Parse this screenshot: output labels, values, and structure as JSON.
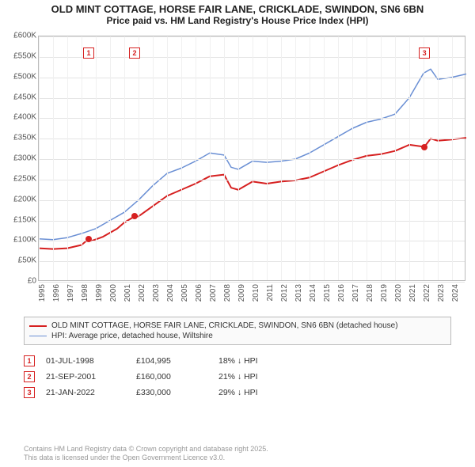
{
  "title_line1": "OLD MINT COTTAGE, HORSE FAIR LANE, CRICKLADE, SWINDON, SN6 6BN",
  "title_line2": "Price paid vs. HM Land Registry's House Price Index (HPI)",
  "chart": {
    "type": "line",
    "background_color": "#ffffff",
    "grid_color": "#e4e4e4",
    "axis_color": "#bbbbbb",
    "label_fontsize": 10,
    "x": {
      "min": 1995,
      "max": 2025,
      "ticks": [
        1995,
        1996,
        1997,
        1998,
        1999,
        2000,
        2001,
        2002,
        2003,
        2004,
        2005,
        2006,
        2007,
        2008,
        2009,
        2010,
        2011,
        2012,
        2013,
        2014,
        2015,
        2016,
        2017,
        2018,
        2019,
        2020,
        2021,
        2022,
        2023,
        2024
      ]
    },
    "y": {
      "min": 0,
      "max": 600000,
      "ticks": [
        0,
        50000,
        100000,
        150000,
        200000,
        250000,
        300000,
        350000,
        400000,
        450000,
        500000,
        550000,
        600000
      ],
      "labels": [
        "£0",
        "£50K",
        "£100K",
        "£150K",
        "£200K",
        "£250K",
        "£300K",
        "£350K",
        "£400K",
        "£450K",
        "£500K",
        "£550K",
        "£600K"
      ]
    },
    "series": [
      {
        "id": "price_paid",
        "label": "OLD MINT COTTAGE, HORSE FAIR LANE, CRICKLADE, SWINDON, SN6 6BN (detached house)",
        "color": "#d62020",
        "line_width": 2,
        "points": [
          [
            1995.0,
            82000
          ],
          [
            1996.0,
            80000
          ],
          [
            1997.0,
            82000
          ],
          [
            1998.0,
            90000
          ],
          [
            1998.5,
            104995
          ],
          [
            1998.7,
            100000
          ],
          [
            1999.5,
            110000
          ],
          [
            2000.5,
            130000
          ],
          [
            2001.0,
            145000
          ],
          [
            2001.72,
            160000
          ],
          [
            2002.0,
            160000
          ],
          [
            2003.0,
            185000
          ],
          [
            2004.0,
            210000
          ],
          [
            2005.0,
            225000
          ],
          [
            2006.0,
            240000
          ],
          [
            2007.0,
            258000
          ],
          [
            2008.0,
            262000
          ],
          [
            2008.5,
            230000
          ],
          [
            2009.0,
            225000
          ],
          [
            2010.0,
            245000
          ],
          [
            2011.0,
            240000
          ],
          [
            2012.0,
            245000
          ],
          [
            2013.0,
            248000
          ],
          [
            2014.0,
            255000
          ],
          [
            2015.0,
            270000
          ],
          [
            2016.0,
            285000
          ],
          [
            2017.0,
            298000
          ],
          [
            2018.0,
            308000
          ],
          [
            2019.0,
            312000
          ],
          [
            2020.0,
            320000
          ],
          [
            2021.0,
            335000
          ],
          [
            2022.06,
            330000
          ],
          [
            2022.5,
            350000
          ],
          [
            2023.0,
            345000
          ],
          [
            2024.0,
            348000
          ],
          [
            2025.0,
            352000
          ]
        ]
      },
      {
        "id": "hpi",
        "label": "HPI: Average price, detached house, Wiltshire",
        "color": "#6a8fd4",
        "line_width": 1.5,
        "points": [
          [
            1995.0,
            105000
          ],
          [
            1996.0,
            103000
          ],
          [
            1997.0,
            108000
          ],
          [
            1998.0,
            118000
          ],
          [
            1999.0,
            130000
          ],
          [
            2000.0,
            150000
          ],
          [
            2001.0,
            170000
          ],
          [
            2002.0,
            200000
          ],
          [
            2003.0,
            235000
          ],
          [
            2004.0,
            265000
          ],
          [
            2005.0,
            278000
          ],
          [
            2006.0,
            295000
          ],
          [
            2007.0,
            315000
          ],
          [
            2008.0,
            310000
          ],
          [
            2008.5,
            280000
          ],
          [
            2009.0,
            275000
          ],
          [
            2010.0,
            295000
          ],
          [
            2011.0,
            292000
          ],
          [
            2012.0,
            295000
          ],
          [
            2013.0,
            300000
          ],
          [
            2014.0,
            315000
          ],
          [
            2015.0,
            335000
          ],
          [
            2016.0,
            355000
          ],
          [
            2017.0,
            375000
          ],
          [
            2018.0,
            390000
          ],
          [
            2019.0,
            398000
          ],
          [
            2020.0,
            410000
          ],
          [
            2021.0,
            450000
          ],
          [
            2022.0,
            510000
          ],
          [
            2022.5,
            520000
          ],
          [
            2023.0,
            495000
          ],
          [
            2024.0,
            500000
          ],
          [
            2025.0,
            508000
          ]
        ]
      }
    ],
    "sale_markers": [
      {
        "n": "1",
        "year": 1998.5,
        "price": 104995,
        "color": "#d62020"
      },
      {
        "n": "2",
        "year": 2001.72,
        "price": 160000,
        "color": "#d62020"
      },
      {
        "n": "3",
        "year": 2022.06,
        "price": 330000,
        "color": "#d62020"
      }
    ]
  },
  "legend": {
    "items": [
      {
        "color": "#d62020",
        "width": 2,
        "label": "OLD MINT COTTAGE, HORSE FAIR LANE, CRICKLADE, SWINDON, SN6 6BN (detached house)"
      },
      {
        "color": "#6a8fd4",
        "width": 1.5,
        "label": "HPI: Average price, detached house, Wiltshire"
      }
    ]
  },
  "sales_rows": [
    {
      "n": "1",
      "color": "#d62020",
      "date": "01-JUL-1998",
      "price": "£104,995",
      "pct": "18% ↓ HPI"
    },
    {
      "n": "2",
      "color": "#d62020",
      "date": "21-SEP-2001",
      "price": "£160,000",
      "pct": "21% ↓ HPI"
    },
    {
      "n": "3",
      "color": "#d62020",
      "date": "21-JAN-2022",
      "price": "£330,000",
      "pct": "29% ↓ HPI"
    }
  ],
  "footer_line1": "Contains HM Land Registry data © Crown copyright and database right 2025.",
  "footer_line2": "This data is licensed under the Open Government Licence v3.0."
}
